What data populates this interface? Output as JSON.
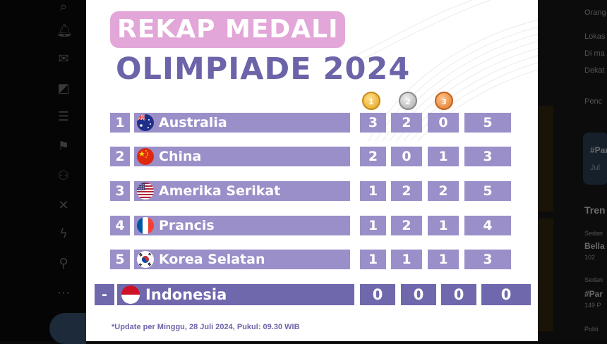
{
  "background": {
    "right_panel": {
      "lines": [
        "Orang",
        "Lokas",
        "Di ma",
        "Dekat",
        "Penc",
        "#Par",
        "Jul",
        "Tren",
        "Sedan",
        "Bella",
        "102 ",
        "Sedan",
        "#Par",
        "149 P",
        "Politi"
      ]
    }
  },
  "graphic": {
    "title_line1": "REKAP MEDALI",
    "title_line2": "OLIMPIADE 2024",
    "medal_headers": [
      "1",
      "2",
      "3"
    ],
    "rows": [
      {
        "rank": "1",
        "country": "Australia",
        "flag": "australia-flag-icon",
        "gold": "3",
        "silver": "2",
        "bronze": "0",
        "total": "5"
      },
      {
        "rank": "2",
        "country": "China",
        "flag": "china-flag-icon",
        "gold": "2",
        "silver": "0",
        "bronze": "1",
        "total": "3"
      },
      {
        "rank": "3",
        "country": "Amerika Serikat",
        "flag": "usa-flag-icon",
        "gold": "1",
        "silver": "2",
        "bronze": "2",
        "total": "5"
      },
      {
        "rank": "4",
        "country": "Prancis",
        "flag": "france-flag-icon",
        "gold": "1",
        "silver": "2",
        "bronze": "1",
        "total": "4"
      },
      {
        "rank": "5",
        "country": "Korea Selatan",
        "flag": "south-korea-flag-icon",
        "gold": "1",
        "silver": "1",
        "bronze": "1",
        "total": "3"
      }
    ],
    "indonesia": {
      "rank": "-",
      "country": "Indonesia",
      "flag": "indonesia-flag-icon",
      "gold": "0",
      "silver": "0",
      "bronze": "0",
      "total": "0"
    },
    "footnote": "*Update per Minggu, 28 Juli 2024, Pukul: 09.30 WIB"
  },
  "colors": {
    "row": "#9a8fc8",
    "indonesia_row": "#6f68ad",
    "title_pill": "#e2a6d8",
    "title_text": "#6b64a8"
  }
}
